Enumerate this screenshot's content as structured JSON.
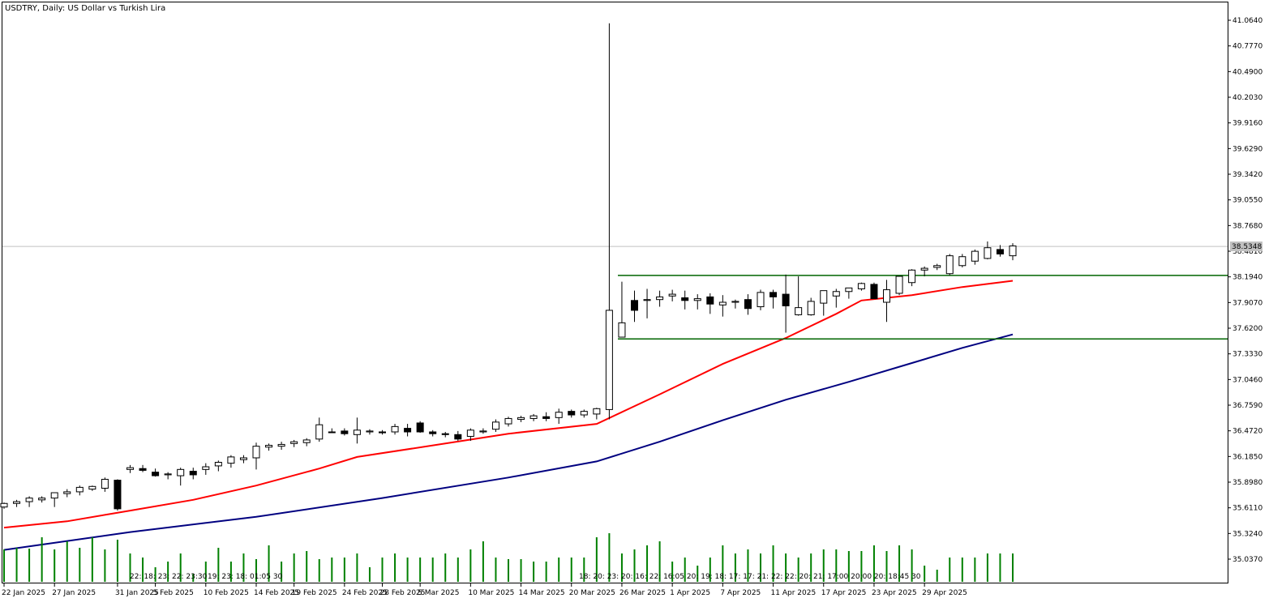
{
  "chart_data": {
    "type": "candlestick",
    "title": "USDTRY, Daily:  US Dollar vs Turkish Lira",
    "symbol": "USDTRY",
    "timeframe": "Daily",
    "description": "US Dollar vs Turkish Lira",
    "current_price_label": "38.5348",
    "current_price": 38.5348,
    "ylim": [
      35.0,
      41.1
    ],
    "y_ticks": [
      "41.0640",
      "40.7770",
      "40.4900",
      "40.2030",
      "39.9160",
      "39.6290",
      "39.3420",
      "39.0550",
      "38.7680",
      "38.4810",
      "38.1940",
      "37.9070",
      "37.6200",
      "37.3330",
      "37.0460",
      "36.7590",
      "36.4720",
      "36.1850",
      "35.8980",
      "35.6110",
      "35.3240",
      "35.0370"
    ],
    "x_ticks": [
      "22 Jan 2025",
      "27 Jan 2025",
      "31 Jan 2025",
      "5 Feb 2025",
      "10 Feb 2025",
      "14 Feb 2025",
      "19 Feb 2025",
      "24 Feb 2025",
      "28 Feb 2025",
      "5 Mar 2025",
      "10 Mar 2025",
      "14 Mar 2025",
      "20 Mar 2025",
      "26 Mar 2025",
      "1 Apr 2025",
      "7 Apr 2025",
      "11 Apr 2025",
      "17 Apr 2025",
      "23 Apr 2025",
      "29 Apr 2025"
    ],
    "candles": [
      [
        35.62,
        35.67,
        35.6,
        35.66
      ],
      [
        35.66,
        35.7,
        35.62,
        35.68
      ],
      [
        35.68,
        35.74,
        35.62,
        35.72
      ],
      [
        35.7,
        35.74,
        35.67,
        35.72
      ],
      [
        35.72,
        35.78,
        35.62,
        35.78
      ],
      [
        35.77,
        35.82,
        35.73,
        35.79
      ],
      [
        35.79,
        35.86,
        35.75,
        35.84
      ],
      [
        35.82,
        35.86,
        35.8,
        35.85
      ],
      [
        35.83,
        35.95,
        35.79,
        35.93
      ],
      [
        35.92,
        35.93,
        35.58,
        35.6
      ],
      [
        36.04,
        36.09,
        36.0,
        36.06
      ],
      [
        36.05,
        36.09,
        36.01,
        36.03
      ],
      [
        36.01,
        36.05,
        35.96,
        35.97
      ],
      [
        35.98,
        36.01,
        35.93,
        35.99
      ],
      [
        35.97,
        36.06,
        35.86,
        36.04
      ],
      [
        36.02,
        36.06,
        35.93,
        35.98
      ],
      [
        36.04,
        36.11,
        35.98,
        36.07
      ],
      [
        36.08,
        36.14,
        36.02,
        36.12
      ],
      [
        36.11,
        36.2,
        36.06,
        36.18
      ],
      [
        36.15,
        36.2,
        36.11,
        36.17
      ],
      [
        36.17,
        36.34,
        36.04,
        36.3
      ],
      [
        36.29,
        36.33,
        36.25,
        36.31
      ],
      [
        36.3,
        36.35,
        36.26,
        36.32
      ],
      [
        36.33,
        36.37,
        36.29,
        36.35
      ],
      [
        36.34,
        36.39,
        36.3,
        36.37
      ],
      [
        36.38,
        36.62,
        36.35,
        36.54
      ],
      [
        36.46,
        36.5,
        36.45,
        36.46
      ],
      [
        36.47,
        36.5,
        36.42,
        36.44
      ],
      [
        36.43,
        36.62,
        36.33,
        36.48
      ],
      [
        36.46,
        36.49,
        36.43,
        36.47
      ],
      [
        36.46,
        36.48,
        36.43,
        36.45
      ],
      [
        36.46,
        36.55,
        36.43,
        36.52
      ],
      [
        36.5,
        36.55,
        36.41,
        36.46
      ],
      [
        36.56,
        36.58,
        36.45,
        36.46
      ],
      [
        36.46,
        36.48,
        36.41,
        36.44
      ],
      [
        36.44,
        36.46,
        36.4,
        36.43
      ],
      [
        36.43,
        36.47,
        36.36,
        36.38
      ],
      [
        36.41,
        36.5,
        36.36,
        36.48
      ],
      [
        36.46,
        36.5,
        36.44,
        36.47
      ],
      [
        36.49,
        36.6,
        36.46,
        36.57
      ],
      [
        36.55,
        36.63,
        36.52,
        36.61
      ],
      [
        36.6,
        36.64,
        36.57,
        36.62
      ],
      [
        36.61,
        36.66,
        36.58,
        36.64
      ],
      [
        36.63,
        36.68,
        36.58,
        36.61
      ],
      [
        36.62,
        36.72,
        36.55,
        36.68
      ],
      [
        36.69,
        36.71,
        36.62,
        36.65
      ],
      [
        36.65,
        36.71,
        36.62,
        36.69
      ],
      [
        36.66,
        36.73,
        36.6,
        36.72
      ],
      [
        36.71,
        41.03,
        36.6,
        37.82
      ],
      [
        37.52,
        38.14,
        37.52,
        37.68
      ],
      [
        37.93,
        38.04,
        37.69,
        37.82
      ],
      [
        37.93,
        38.06,
        37.73,
        37.94
      ],
      [
        37.94,
        38.04,
        37.86,
        37.97
      ],
      [
        37.98,
        38.05,
        37.92,
        38.0
      ],
      [
        37.96,
        38.04,
        37.83,
        37.93
      ],
      [
        37.93,
        38.0,
        37.83,
        37.95
      ],
      [
        37.97,
        38.01,
        37.78,
        37.89
      ],
      [
        37.88,
        37.99,
        37.75,
        37.91
      ],
      [
        37.91,
        37.94,
        37.84,
        37.92
      ],
      [
        37.94,
        38.0,
        37.77,
        37.84
      ],
      [
        37.86,
        38.05,
        37.82,
        38.02
      ],
      [
        38.02,
        38.05,
        37.84,
        37.97
      ],
      [
        38.0,
        38.22,
        37.57,
        37.87
      ],
      [
        37.77,
        38.2,
        37.76,
        37.85
      ],
      [
        37.77,
        37.96,
        37.76,
        37.92
      ],
      [
        37.9,
        38.04,
        37.76,
        38.04
      ],
      [
        37.98,
        38.06,
        37.85,
        38.03
      ],
      [
        38.03,
        38.07,
        37.95,
        38.07
      ],
      [
        38.06,
        38.13,
        38.04,
        38.12
      ],
      [
        38.11,
        38.13,
        37.97,
        37.95
      ],
      [
        37.91,
        38.16,
        37.69,
        38.05
      ],
      [
        38.01,
        38.2,
        37.99,
        38.2
      ],
      [
        38.13,
        38.28,
        38.09,
        38.27
      ],
      [
        38.27,
        38.31,
        38.2,
        38.29
      ],
      [
        38.3,
        38.34,
        38.27,
        38.32
      ],
      [
        38.23,
        38.45,
        38.21,
        38.43
      ],
      [
        38.32,
        38.45,
        38.3,
        38.42
      ],
      [
        38.37,
        38.5,
        38.33,
        38.48
      ],
      [
        38.4,
        38.59,
        38.39,
        38.52
      ],
      [
        38.5,
        38.55,
        38.42,
        38.45
      ],
      [
        38.43,
        38.57,
        38.38,
        38.54
      ]
    ],
    "ma_fast": {
      "color": "#ff0000",
      "points": [
        [
          0,
          35.39
        ],
        [
          5,
          35.46
        ],
        [
          10,
          35.58
        ],
        [
          15,
          35.7
        ],
        [
          20,
          35.86
        ],
        [
          25,
          36.05
        ],
        [
          28,
          36.18
        ],
        [
          35,
          36.33
        ],
        [
          40,
          36.44
        ],
        [
          47,
          36.55
        ],
        [
          52,
          36.88
        ],
        [
          57,
          37.22
        ],
        [
          62,
          37.51
        ],
        [
          66,
          37.78
        ],
        [
          68,
          37.93
        ],
        [
          72,
          37.99
        ],
        [
          76,
          38.08
        ],
        [
          80,
          38.15
        ]
      ]
    },
    "ma_slow": {
      "color": "#000080",
      "points": [
        [
          0,
          35.14
        ],
        [
          10,
          35.34
        ],
        [
          20,
          35.51
        ],
        [
          30,
          35.72
        ],
        [
          40,
          35.95
        ],
        [
          47,
          36.13
        ],
        [
          52,
          36.35
        ],
        [
          57,
          36.59
        ],
        [
          62,
          36.82
        ],
        [
          67,
          37.02
        ],
        [
          72,
          37.23
        ],
        [
          76,
          37.4
        ],
        [
          80,
          37.55
        ]
      ]
    },
    "levels": [
      {
        "value": 38.21,
        "color": "#006400"
      },
      {
        "value": 37.5,
        "color": "#006400"
      }
    ],
    "volume_color": "#008000",
    "volumes": [
      40,
      42,
      41,
      55,
      40,
      50,
      42,
      55,
      40,
      52,
      35,
      30,
      18,
      25,
      35,
      10,
      25,
      42,
      25,
      35,
      28,
      45,
      25,
      35,
      38,
      28,
      30,
      30,
      35,
      18,
      30,
      35,
      30,
      30,
      30,
      35,
      30,
      40,
      50,
      30,
      28,
      28,
      25,
      25,
      30,
      30,
      30,
      55,
      60,
      35,
      40,
      45,
      50,
      25,
      30,
      20,
      30,
      45,
      35,
      40,
      35,
      45,
      35,
      30,
      35,
      40,
      40,
      38,
      38,
      45,
      38,
      45,
      40,
      20,
      15,
      30,
      30,
      30,
      35,
      35,
      35
    ],
    "time_labels_group1": "22: 18: 23: 22: 23:30",
    "time_labels_group2": "19: 23: 18: 01:05 30",
    "time_labels_group3": "18: 20: 23: 20: 16: 22: 16:05 20: 19: 18: 17: 17: 21: 22: 22: 20: 21: 17:00 20:00 20: 18:45 30"
  }
}
